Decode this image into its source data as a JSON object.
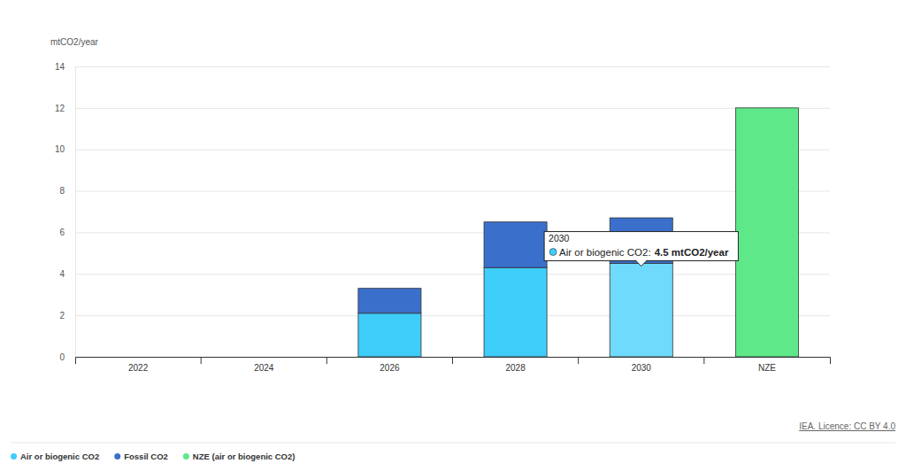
{
  "chart_data": {
    "type": "bar",
    "stacked": true,
    "y_label": "mtCO2/year",
    "categories": [
      "2022",
      "2024",
      "2026",
      "2028",
      "2030",
      "NZE"
    ],
    "series": [
      {
        "name": "Air or biogenic CO2",
        "color": "#3fcdfa",
        "values": [
          null,
          null,
          2.1,
          4.3,
          4.5,
          null
        ]
      },
      {
        "name": "Fossil CO2",
        "color": "#3a6fcc",
        "values": [
          null,
          null,
          1.2,
          2.2,
          2.2,
          null
        ]
      },
      {
        "name": "NZE (air or biogenic CO2)",
        "color": "#5ee88a",
        "values": [
          null,
          null,
          null,
          null,
          null,
          12
        ]
      }
    ],
    "ylim": [
      0,
      14
    ],
    "yticks": [
      0,
      2,
      4,
      6,
      8,
      10,
      12,
      14
    ],
    "grid": true,
    "legend": "bottom left",
    "annotations": [
      {
        "title": "2030",
        "text": "Air or biogenic CO2:",
        "value_text": "4.5 mtCO2/year"
      }
    ],
    "source": "IEA. Licence: CC BY 4.0"
  }
}
